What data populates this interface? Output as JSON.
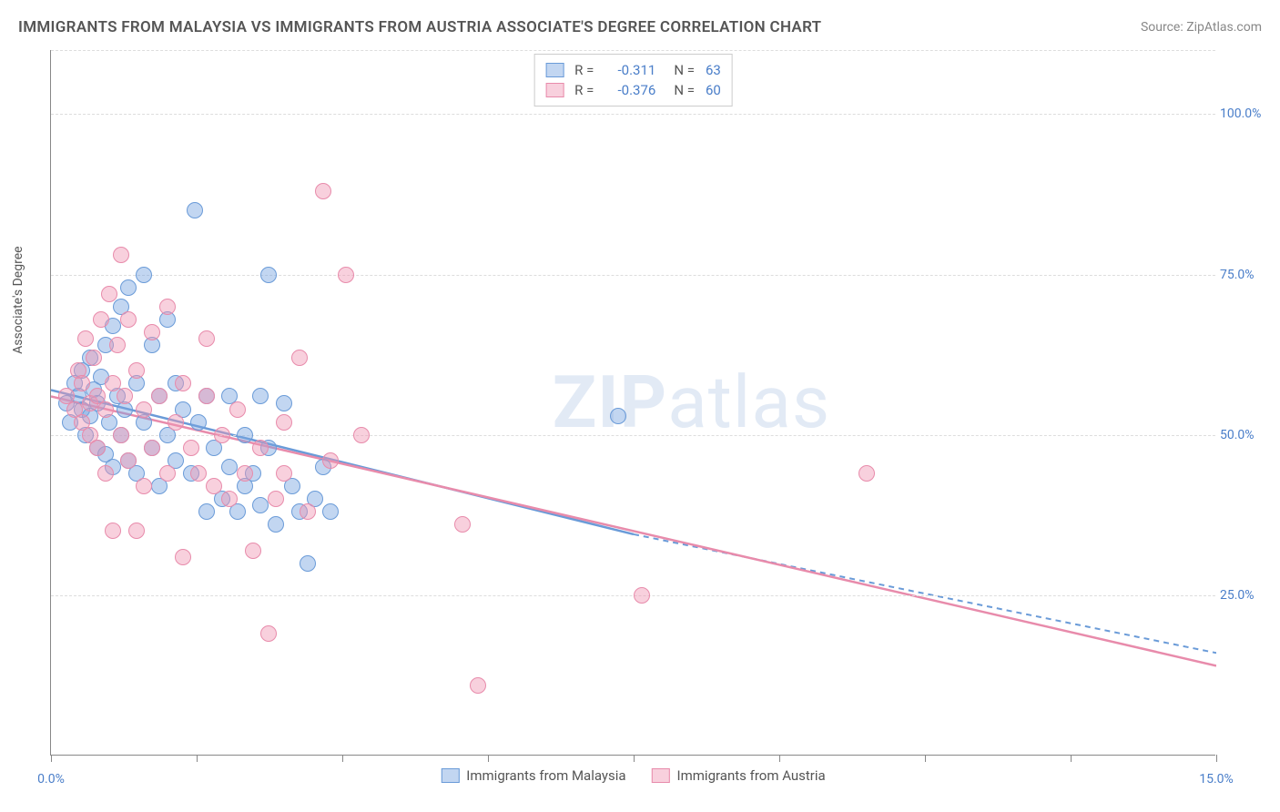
{
  "title": "IMMIGRANTS FROM MALAYSIA VS IMMIGRANTS FROM AUSTRIA ASSOCIATE'S DEGREE CORRELATION CHART",
  "source": "Source: ZipAtlas.com",
  "y_axis_label": "Associate's Degree",
  "watermark_bold": "ZIP",
  "watermark_light": "atlas",
  "chart": {
    "type": "scatter",
    "xlim": [
      0,
      15
    ],
    "ylim": [
      0,
      110
    ],
    "x_ticks": [
      0,
      1.875,
      3.75,
      5.625,
      7.5,
      9.375,
      11.25,
      13.125,
      15
    ],
    "x_tick_labels": {
      "0": "0.0%",
      "15": "15.0%"
    },
    "y_gridlines": [
      25,
      50,
      75,
      100,
      110
    ],
    "y_tick_labels": {
      "25": "25.0%",
      "50": "50.0%",
      "75": "75.0%",
      "100": "100.0%"
    },
    "background_color": "#ffffff",
    "grid_color": "#dddddd",
    "axis_color": "#888888",
    "marker_radius": 9,
    "series": [
      {
        "id": "malaysia",
        "name": "Immigrants from Malaysia",
        "color_fill": "rgba(120, 165, 225, 0.45)",
        "color_stroke": "#6a9bd8",
        "r": "-0.311",
        "n": "63",
        "trend": {
          "x1": 0,
          "y1": 57,
          "x2_solid": 7.5,
          "y2_solid": 34.5,
          "x2_dash": 15,
          "y2_dash": 16
        },
        "points": [
          [
            0.2,
            55
          ],
          [
            0.25,
            52
          ],
          [
            0.3,
            58
          ],
          [
            0.35,
            56
          ],
          [
            0.4,
            54
          ],
          [
            0.4,
            60
          ],
          [
            0.45,
            50
          ],
          [
            0.5,
            53
          ],
          [
            0.5,
            62
          ],
          [
            0.55,
            57
          ],
          [
            0.6,
            48
          ],
          [
            0.6,
            55
          ],
          [
            0.65,
            59
          ],
          [
            0.7,
            47
          ],
          [
            0.7,
            64
          ],
          [
            0.75,
            52
          ],
          [
            0.8,
            45
          ],
          [
            0.8,
            67
          ],
          [
            0.85,
            56
          ],
          [
            0.9,
            50
          ],
          [
            0.9,
            70
          ],
          [
            0.95,
            54
          ],
          [
            1.0,
            46
          ],
          [
            1.0,
            73
          ],
          [
            1.1,
            58
          ],
          [
            1.1,
            44
          ],
          [
            1.2,
            75
          ],
          [
            1.2,
            52
          ],
          [
            1.3,
            64
          ],
          [
            1.3,
            48
          ],
          [
            1.4,
            56
          ],
          [
            1.4,
            42
          ],
          [
            1.5,
            68
          ],
          [
            1.5,
            50
          ],
          [
            1.6,
            46
          ],
          [
            1.6,
            58
          ],
          [
            1.7,
            54
          ],
          [
            1.8,
            44
          ],
          [
            1.85,
            85
          ],
          [
            1.9,
            52
          ],
          [
            2.0,
            38
          ],
          [
            2.0,
            56
          ],
          [
            2.1,
            48
          ],
          [
            2.2,
            40
          ],
          [
            2.3,
            56
          ],
          [
            2.3,
            45
          ],
          [
            2.4,
            38
          ],
          [
            2.5,
            42
          ],
          [
            2.5,
            50
          ],
          [
            2.6,
            44
          ],
          [
            2.7,
            39
          ],
          [
            2.7,
            56
          ],
          [
            2.8,
            75
          ],
          [
            2.8,
            48
          ],
          [
            2.9,
            36
          ],
          [
            3.0,
            55
          ],
          [
            3.1,
            42
          ],
          [
            3.2,
            38
          ],
          [
            3.3,
            30
          ],
          [
            3.4,
            40
          ],
          [
            3.5,
            45
          ],
          [
            3.6,
            38
          ],
          [
            7.3,
            53
          ]
        ]
      },
      {
        "id": "austria",
        "name": "Immigrants from Austria",
        "color_fill": "rgba(240, 150, 180, 0.45)",
        "color_stroke": "#e88bab",
        "r": "-0.376",
        "n": "60",
        "trend": {
          "x1": 0,
          "y1": 56,
          "x2_solid": 15,
          "y2_solid": 14,
          "x2_dash": 15,
          "y2_dash": 14
        },
        "points": [
          [
            0.2,
            56
          ],
          [
            0.3,
            54
          ],
          [
            0.35,
            60
          ],
          [
            0.4,
            52
          ],
          [
            0.4,
            58
          ],
          [
            0.45,
            65
          ],
          [
            0.5,
            55
          ],
          [
            0.5,
            50
          ],
          [
            0.55,
            62
          ],
          [
            0.6,
            56
          ],
          [
            0.6,
            48
          ],
          [
            0.65,
            68
          ],
          [
            0.7,
            54
          ],
          [
            0.7,
            44
          ],
          [
            0.75,
            72
          ],
          [
            0.8,
            58
          ],
          [
            0.8,
            35
          ],
          [
            0.85,
            64
          ],
          [
            0.9,
            50
          ],
          [
            0.9,
            78
          ],
          [
            0.95,
            56
          ],
          [
            1.0,
            46
          ],
          [
            1.0,
            68
          ],
          [
            1.1,
            35
          ],
          [
            1.1,
            60
          ],
          [
            1.2,
            54
          ],
          [
            1.2,
            42
          ],
          [
            1.3,
            66
          ],
          [
            1.3,
            48
          ],
          [
            1.4,
            56
          ],
          [
            1.5,
            44
          ],
          [
            1.5,
            70
          ],
          [
            1.6,
            52
          ],
          [
            1.7,
            58
          ],
          [
            1.7,
            31
          ],
          [
            1.8,
            48
          ],
          [
            1.9,
            44
          ],
          [
            2.0,
            56
          ],
          [
            2.0,
            65
          ],
          [
            2.1,
            42
          ],
          [
            2.2,
            50
          ],
          [
            2.3,
            40
          ],
          [
            2.4,
            54
          ],
          [
            2.5,
            44
          ],
          [
            2.6,
            32
          ],
          [
            2.7,
            48
          ],
          [
            2.8,
            19
          ],
          [
            2.9,
            40
          ],
          [
            3.0,
            52
          ],
          [
            3.0,
            44
          ],
          [
            3.2,
            62
          ],
          [
            3.3,
            38
          ],
          [
            3.5,
            88
          ],
          [
            3.6,
            46
          ],
          [
            3.8,
            75
          ],
          [
            4.0,
            50
          ],
          [
            5.3,
            36
          ],
          [
            5.5,
            11
          ],
          [
            7.6,
            25
          ],
          [
            10.5,
            44
          ]
        ]
      }
    ]
  },
  "colors": {
    "text_dark": "#555555",
    "text_blue": "#4a7ec9",
    "text_gray": "#888888"
  }
}
